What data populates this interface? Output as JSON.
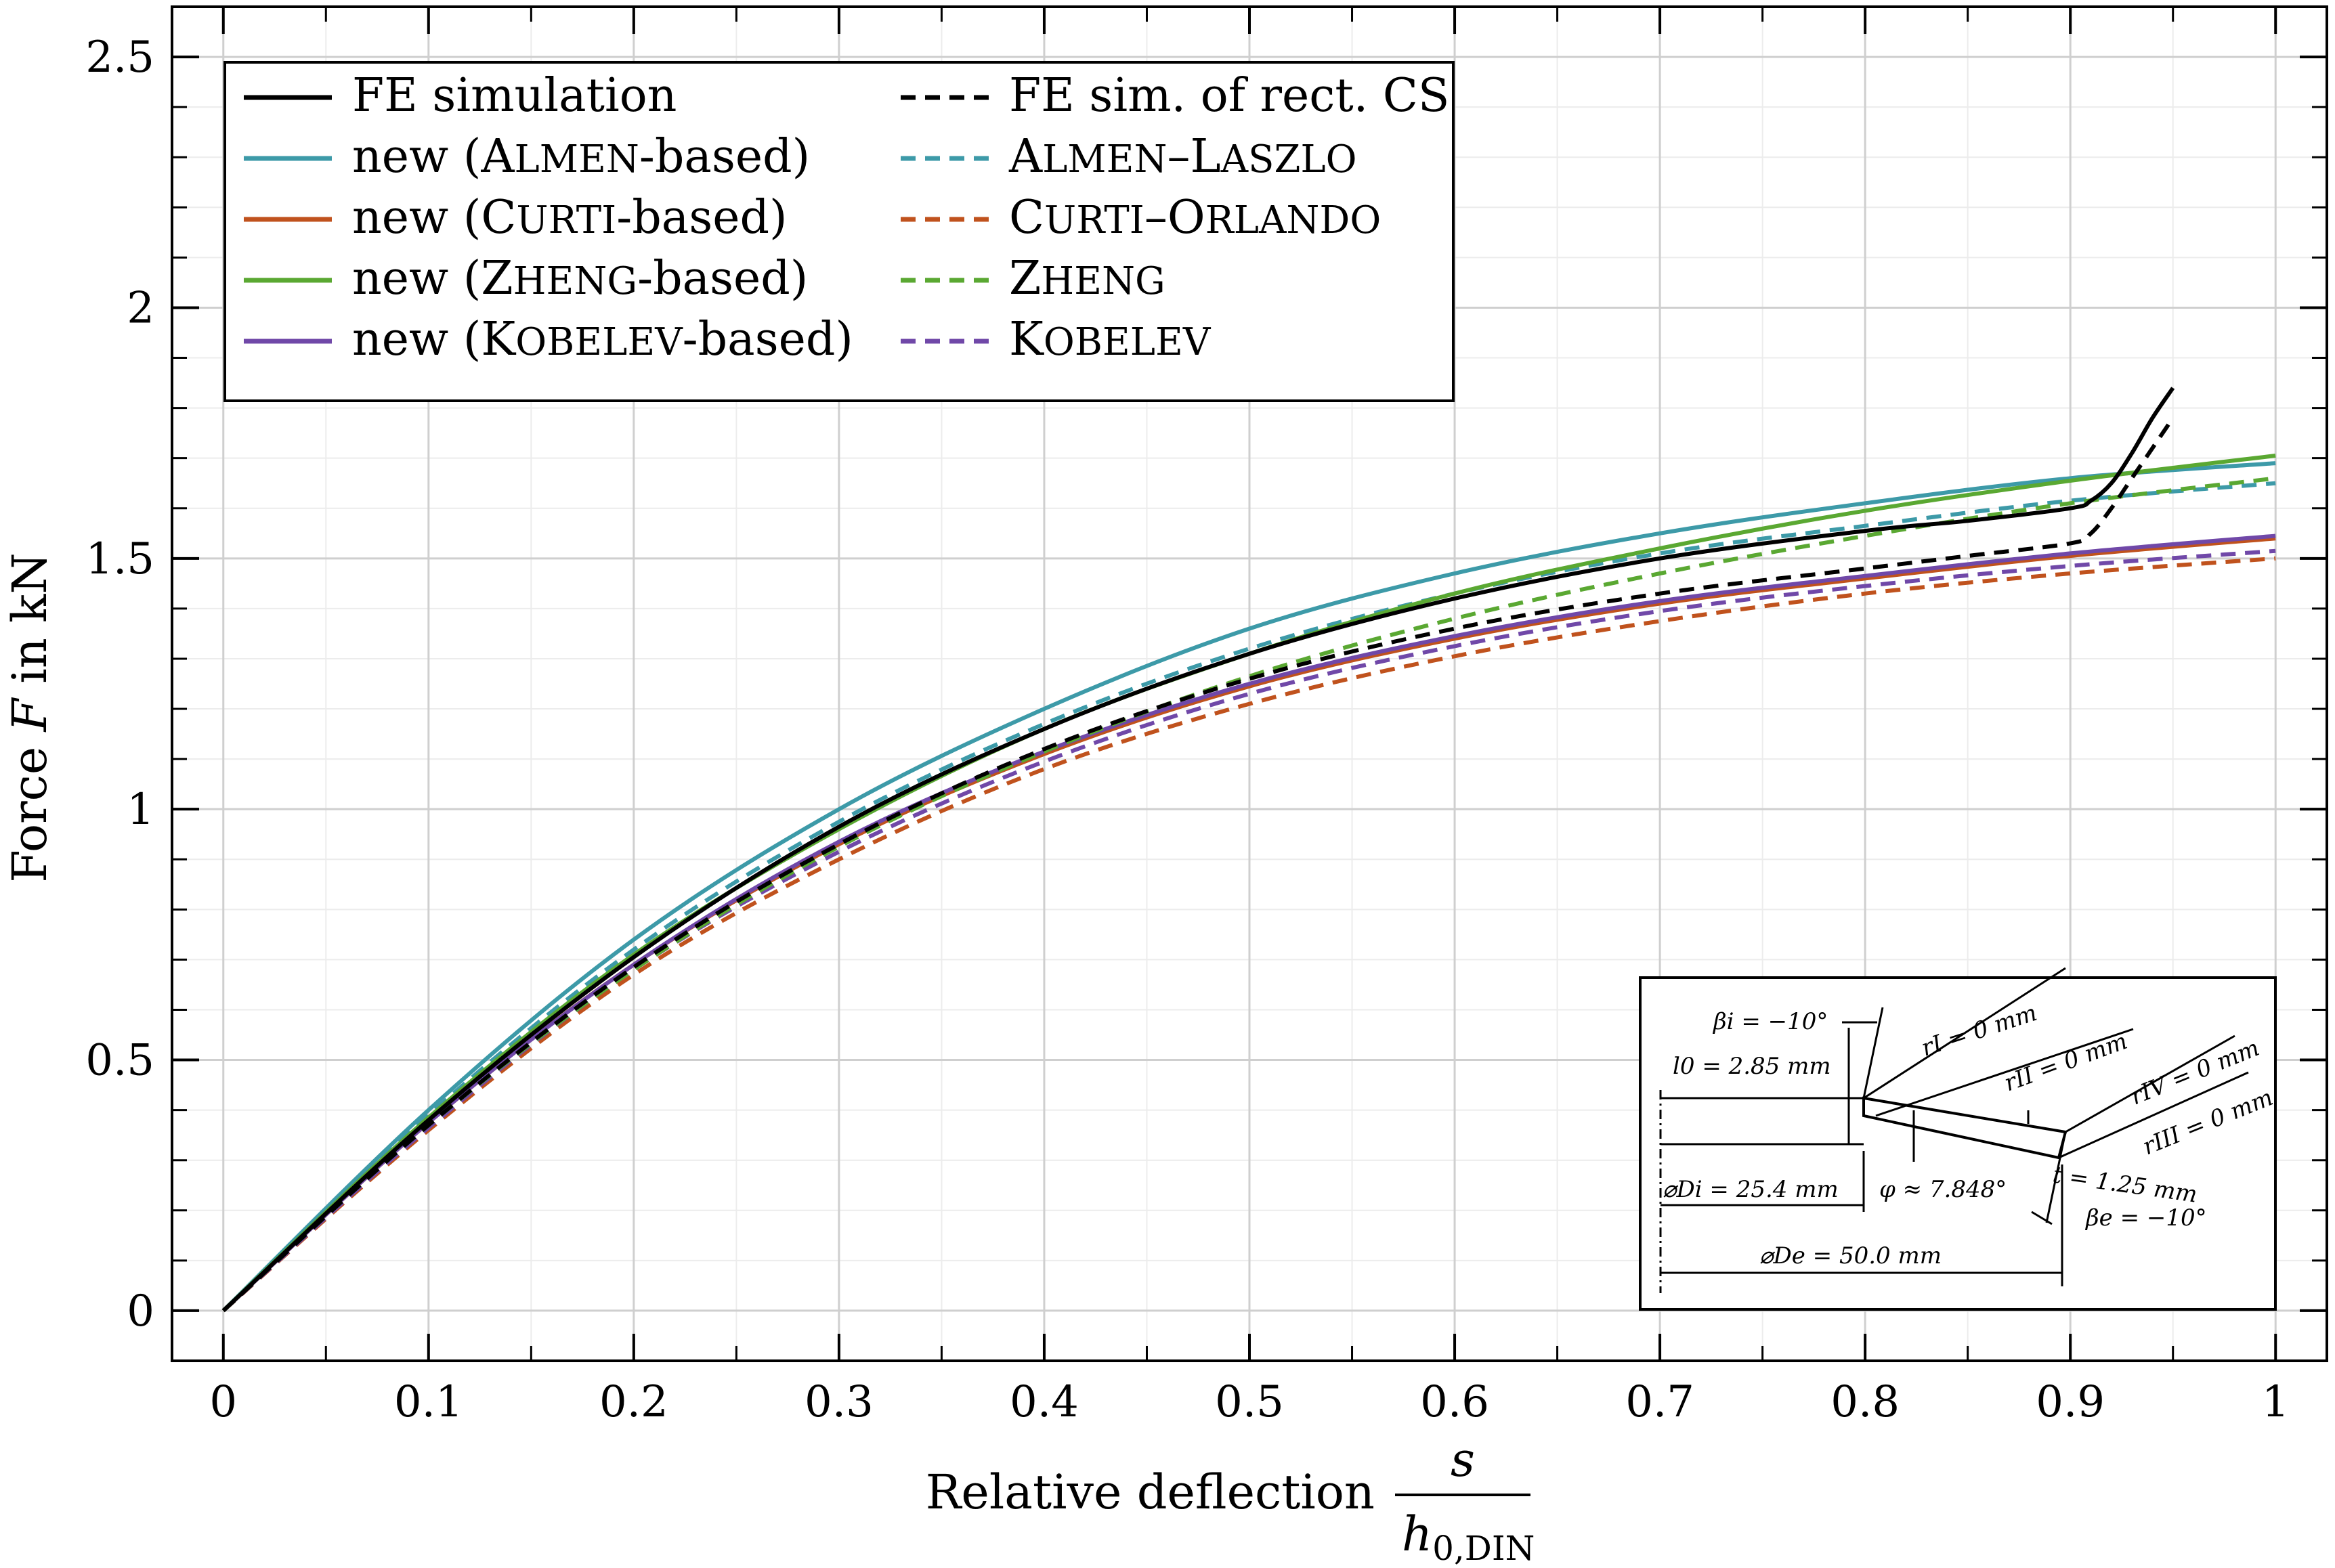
{
  "chart_data": {
    "type": "line",
    "title": "",
    "xlabel": "Relative deflection",
    "xlabel_fraction": {
      "numerator": "s",
      "denominator": "h",
      "denominator_sub": "0,DIN"
    },
    "ylabel": "Force F in kN",
    "ylabel_parts": {
      "pre": "Force ",
      "var": "F",
      "post": " in kN"
    },
    "xlim": [
      -0.025,
      1.025
    ],
    "ylim": [
      -0.1,
      2.6
    ],
    "xticks": [
      0,
      0.1,
      0.2,
      0.3,
      0.4,
      0.5,
      0.6,
      0.7,
      0.8,
      0.9,
      1
    ],
    "xtick_labels": [
      "0",
      "0.1",
      "0.2",
      "0.3",
      "0.4",
      "0.5",
      "0.6",
      "0.7",
      "0.8",
      "0.9",
      "1"
    ],
    "yticks": [
      0,
      0.5,
      1,
      1.5,
      2,
      2.5
    ],
    "ytick_labels": [
      "0",
      "0.5",
      "1",
      "1.5",
      "2",
      "2.5"
    ],
    "grid": true,
    "legend_position": "top-left",
    "series": [
      {
        "name": "FE simulation",
        "legend_parts": [
          {
            "t": "FE simulation"
          }
        ],
        "color": "#000000",
        "dash": "solid",
        "x": [
          0,
          0.1,
          0.2,
          0.3,
          0.4,
          0.5,
          0.6,
          0.7,
          0.8,
          0.85,
          0.9,
          0.91,
          0.92,
          0.93,
          0.94,
          0.95
        ],
        "y": [
          0,
          0.38,
          0.705,
          0.965,
          1.16,
          1.31,
          1.42,
          1.5,
          1.555,
          1.575,
          1.6,
          1.615,
          1.65,
          1.71,
          1.78,
          1.84
        ]
      },
      {
        "name": "FE sim. of rect. CS",
        "legend_parts": [
          {
            "t": "FE sim. of rect. CS"
          }
        ],
        "color": "#000000",
        "dash": "dashed",
        "x": [
          0,
          0.1,
          0.2,
          0.3,
          0.4,
          0.5,
          0.6,
          0.7,
          0.8,
          0.85,
          0.9,
          0.91,
          0.92,
          0.93,
          0.94,
          0.95
        ],
        "y": [
          0,
          0.37,
          0.685,
          0.93,
          1.12,
          1.26,
          1.36,
          1.43,
          1.48,
          1.505,
          1.53,
          1.55,
          1.6,
          1.66,
          1.72,
          1.78
        ]
      },
      {
        "name": "new (ALMEN-based)",
        "legend_parts": [
          {
            "t": "new ("
          },
          {
            "t": "A",
            "sc": false
          },
          {
            "t": "LMEN",
            "sc": true
          },
          {
            "t": "-based)"
          }
        ],
        "color": "#3d9aa8",
        "dash": "solid",
        "x": [
          0,
          0.1,
          0.2,
          0.3,
          0.4,
          0.5,
          0.6,
          0.7,
          0.8,
          0.9,
          1
        ],
        "y": [
          0,
          0.4,
          0.74,
          1.0,
          1.2,
          1.36,
          1.47,
          1.55,
          1.61,
          1.66,
          1.69
        ]
      },
      {
        "name": "ALMEN–LASZLO",
        "legend_parts": [
          {
            "t": "A"
          },
          {
            "t": "LMEN",
            "sc": true
          },
          {
            "t": "–L"
          },
          {
            "t": "ASZLO",
            "sc": true
          }
        ],
        "color": "#3d9aa8",
        "dash": "dashed",
        "x": [
          0,
          0.1,
          0.2,
          0.3,
          0.4,
          0.5,
          0.6,
          0.7,
          0.8,
          0.9,
          1
        ],
        "y": [
          0,
          0.39,
          0.72,
          0.975,
          1.17,
          1.32,
          1.43,
          1.51,
          1.565,
          1.615,
          1.65
        ]
      },
      {
        "name": "new (CURTI-based)",
        "legend_parts": [
          {
            "t": "new ("
          },
          {
            "t": "C"
          },
          {
            "t": "URTI",
            "sc": true
          },
          {
            "t": "-based)"
          }
        ],
        "color": "#c0521d",
        "dash": "solid",
        "x": [
          0,
          0.1,
          0.2,
          0.3,
          0.4,
          0.5,
          0.6,
          0.7,
          0.8,
          0.9,
          1
        ],
        "y": [
          0,
          0.375,
          0.69,
          0.93,
          1.11,
          1.245,
          1.34,
          1.41,
          1.46,
          1.505,
          1.54
        ]
      },
      {
        "name": "CURTI–ORLANDO",
        "legend_parts": [
          {
            "t": "C"
          },
          {
            "t": "URTI",
            "sc": true
          },
          {
            "t": "–O"
          },
          {
            "t": "RLANDO",
            "sc": true
          }
        ],
        "color": "#c0521d",
        "dash": "dashed",
        "x": [
          0,
          0.1,
          0.2,
          0.3,
          0.4,
          0.5,
          0.6,
          0.7,
          0.8,
          0.9,
          1
        ],
        "y": [
          0,
          0.36,
          0.67,
          0.9,
          1.08,
          1.21,
          1.305,
          1.375,
          1.43,
          1.47,
          1.5
        ]
      },
      {
        "name": "new (ZHENG-based)",
        "legend_parts": [
          {
            "t": "new ("
          },
          {
            "t": "Z"
          },
          {
            "t": "HENG",
            "sc": true
          },
          {
            "t": "-based)"
          }
        ],
        "color": "#5aa832",
        "dash": "solid",
        "x": [
          0,
          0.1,
          0.2,
          0.3,
          0.4,
          0.5,
          0.6,
          0.7,
          0.8,
          0.9,
          1
        ],
        "y": [
          0,
          0.385,
          0.71,
          0.96,
          1.16,
          1.31,
          1.43,
          1.52,
          1.595,
          1.655,
          1.705
        ]
      },
      {
        "name": "ZHENG",
        "legend_parts": [
          {
            "t": "Z"
          },
          {
            "t": "HENG",
            "sc": true
          }
        ],
        "color": "#5aa832",
        "dash": "dashed",
        "x": [
          0,
          0.1,
          0.2,
          0.3,
          0.4,
          0.5,
          0.6,
          0.7,
          0.8,
          0.9,
          1
        ],
        "y": [
          0,
          0.37,
          0.68,
          0.925,
          1.115,
          1.265,
          1.38,
          1.47,
          1.545,
          1.61,
          1.66
        ]
      },
      {
        "name": "new (KOBELEV-based)",
        "legend_parts": [
          {
            "t": "new ("
          },
          {
            "t": "K"
          },
          {
            "t": "OBELEV",
            "sc": true
          },
          {
            "t": "-based)"
          }
        ],
        "color": "#7048a8",
        "dash": "solid",
        "x": [
          0,
          0.1,
          0.2,
          0.3,
          0.4,
          0.5,
          0.6,
          0.7,
          0.8,
          0.9,
          1
        ],
        "y": [
          0,
          0.375,
          0.69,
          0.935,
          1.115,
          1.25,
          1.345,
          1.415,
          1.465,
          1.51,
          1.545
        ]
      },
      {
        "name": "KOBELEV",
        "legend_parts": [
          {
            "t": "K"
          },
          {
            "t": "OBELEV",
            "sc": true
          }
        ],
        "color": "#7048a8",
        "dash": "dashed",
        "x": [
          0,
          0.1,
          0.2,
          0.3,
          0.4,
          0.5,
          0.6,
          0.7,
          0.8,
          0.9,
          1
        ],
        "y": [
          0,
          0.365,
          0.68,
          0.915,
          1.095,
          1.23,
          1.325,
          1.395,
          1.445,
          1.485,
          1.515
        ]
      }
    ],
    "inset_annotations": {
      "beta_i": "βi = −10°",
      "r_I": "rI = 0 mm",
      "l0": "l0 = 2.85 mm",
      "r_II": "rII = 0 mm",
      "r_IV": "rIV = 0 mm",
      "r_III": "rIII = 0 mm",
      "Di": "⌀Di = 25.4 mm",
      "phi": "φ ≈ 7.848°",
      "t": "t = 1.25 mm",
      "beta_e": "βe = −10°",
      "De": "⌀De = 50.0 mm"
    }
  }
}
